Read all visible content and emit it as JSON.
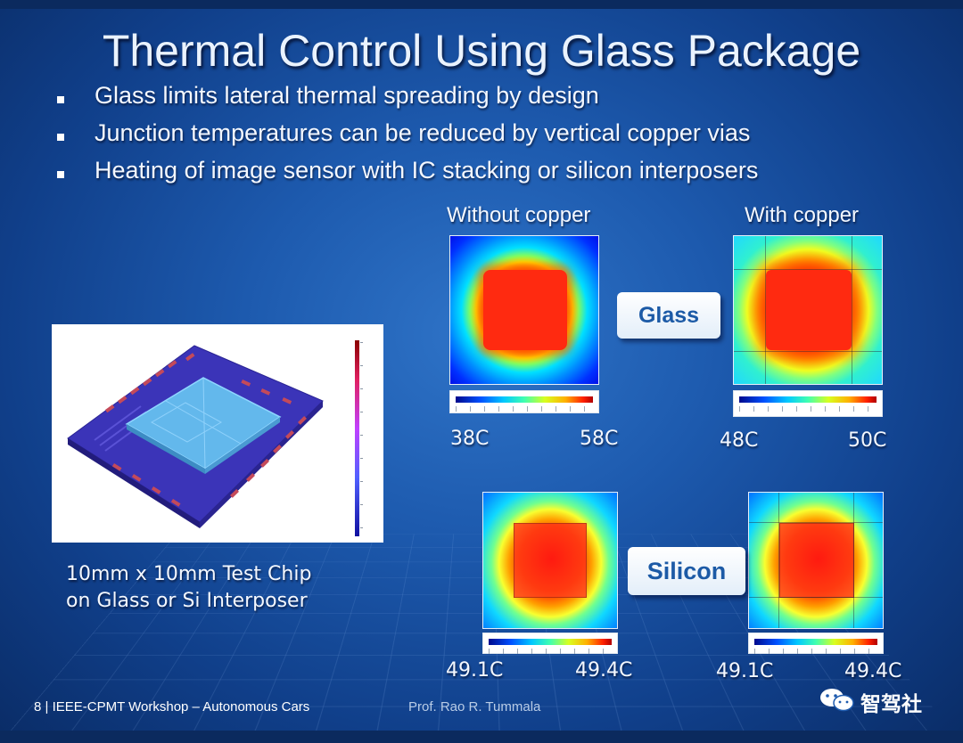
{
  "slide": {
    "title": "Thermal Control Using Glass Package",
    "bullets": [
      "Glass limits lateral thermal spreading by design",
      "Junction temperatures can be reduced by vertical copper vias",
      "Heating of image sensor with IC stacking or silicon interposers"
    ]
  },
  "columns": {
    "without_copper": "Without copper",
    "with_copper": "With copper"
  },
  "substrates": {
    "glass": "Glass",
    "silicon": "Silicon"
  },
  "temperatures": {
    "glass_without_min": "38C",
    "glass_without_max": "58C",
    "glass_with_min": "48C",
    "glass_with_max": "50C",
    "silicon_without_min": "49.1C",
    "silicon_without_max": "49.4C",
    "silicon_with_min": "49.1C",
    "silicon_with_max": "49.4C"
  },
  "test_chip": {
    "caption_line1": "10mm x 10mm Test Chip",
    "caption_line2": "on Glass or Si Interposer"
  },
  "footer": {
    "left": "8 |  IEEE-CPMT Workshop – Autonomous Cars",
    "presenter": "Prof. Rao R. Tummala",
    "watermark": "智驾社"
  },
  "colors": {
    "background": "#1d5aae",
    "pill_text": "#1c5aa6",
    "heat_hot": "#ff2a10",
    "heat_cold": "#0a1fff"
  }
}
